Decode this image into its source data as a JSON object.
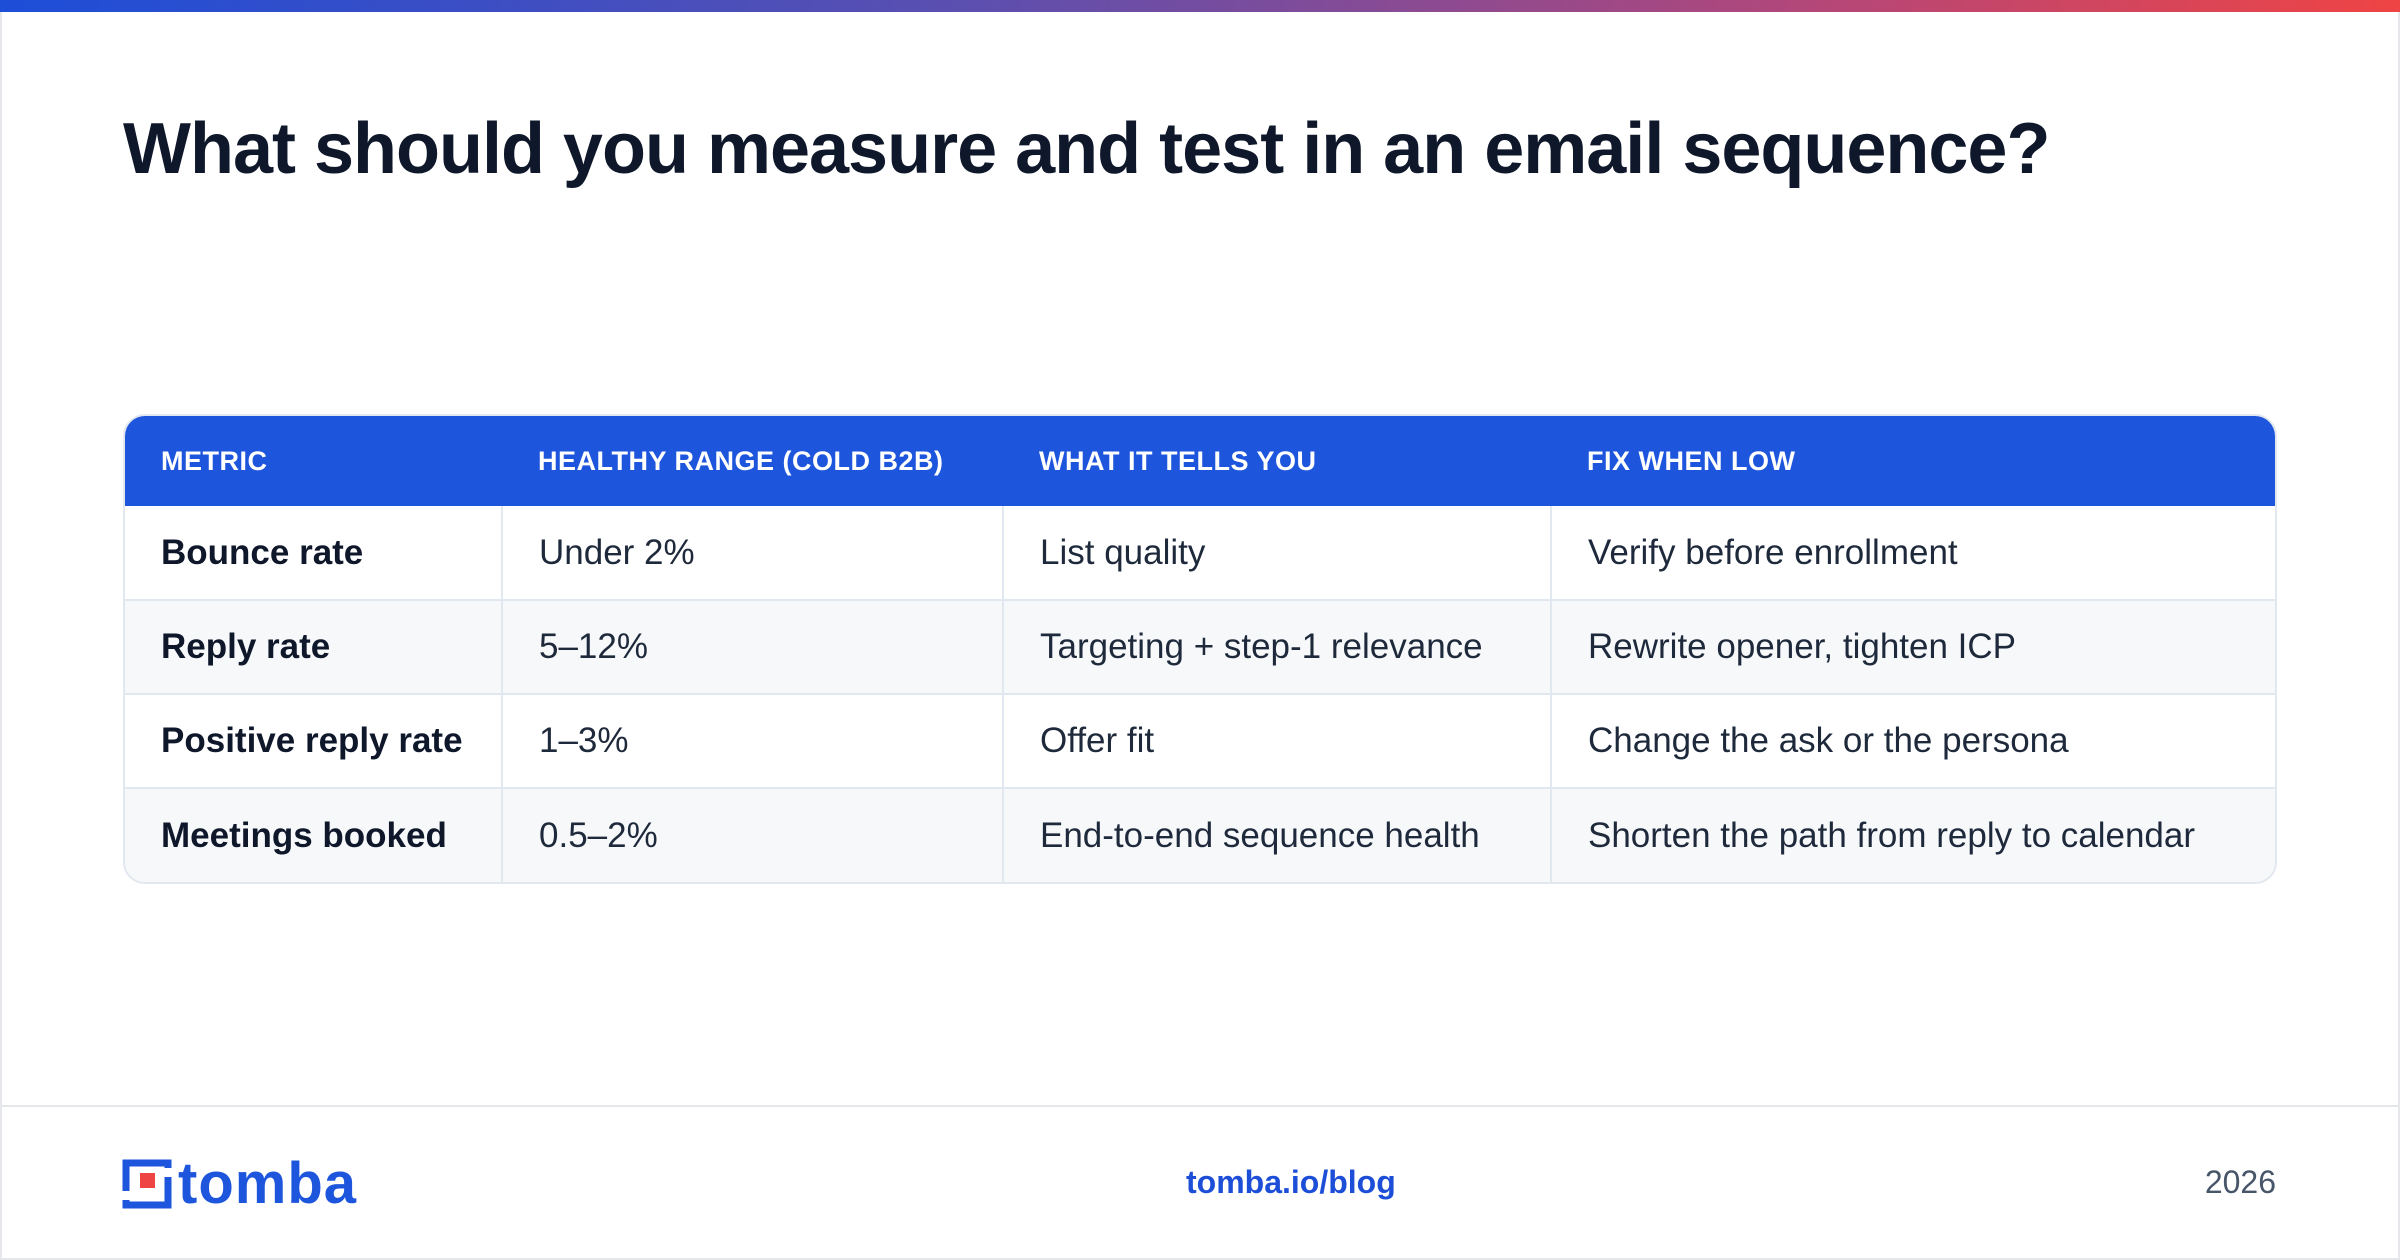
{
  "title": "What should you measure and test in an email sequence?",
  "table": {
    "headers": [
      "METRIC",
      "HEALTHY RANGE (COLD B2B)",
      "WHAT IT TELLS YOU",
      "FIX WHEN LOW"
    ],
    "rows": [
      [
        "Bounce rate",
        "Under 2%",
        "List quality",
        "Verify before enrollment"
      ],
      [
        "Reply rate",
        "5–12%",
        "Targeting + step-1 relevance",
        "Rewrite opener, tighten ICP"
      ],
      [
        "Positive reply rate",
        "1–3%",
        "Offer fit",
        "Change the ask or the persona"
      ],
      [
        "Meetings booked",
        "0.5–2%",
        "End-to-end sequence health",
        "Shorten the path from reply to calendar"
      ]
    ]
  },
  "footer": {
    "brand": "tomba",
    "link": "tomba.io/blog",
    "year": "2026"
  },
  "colors": {
    "accent_blue": "#1d55dd",
    "accent_red": "#ef4444",
    "heading_text": "#0f172a"
  },
  "icons": {
    "logo_mark": "tomba-logo-icon"
  }
}
